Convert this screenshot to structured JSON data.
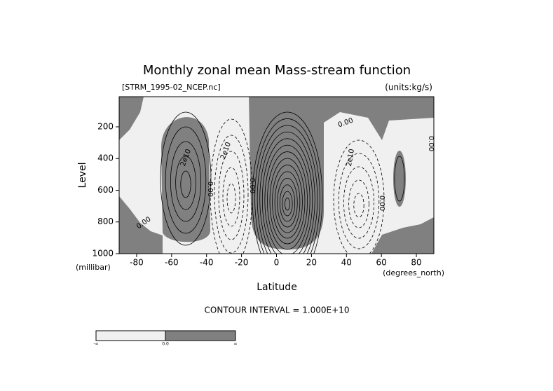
{
  "chart_data": {
    "type": "contour",
    "title": "Monthly zonal mean Mass-stream function",
    "subtitle": "[STRM_1995-02_NCEP.nc]",
    "units": "(units:kg/s)",
    "xlabel": "Latitude",
    "ylabel": "Level",
    "x_unit": "(degrees_north)",
    "y_unit": "(millibar)",
    "note": "CONTOUR INTERVAL = 1.000E+10",
    "xlim": [
      -90,
      90
    ],
    "xticks": [
      -80,
      -60,
      -40,
      -20,
      0,
      20,
      40,
      60,
      80
    ],
    "ylim": [
      10,
      1000
    ],
    "yticks": [
      200,
      400,
      600,
      800,
      1000
    ],
    "contour_labels": [
      "2e10",
      "2e10",
      "0.00",
      "0.00",
      "0.00",
      "2e10",
      "0.00",
      "0.00",
      "0.00"
    ],
    "colorbar_labels": [
      "-∞",
      "0.0",
      "∞"
    ]
  }
}
